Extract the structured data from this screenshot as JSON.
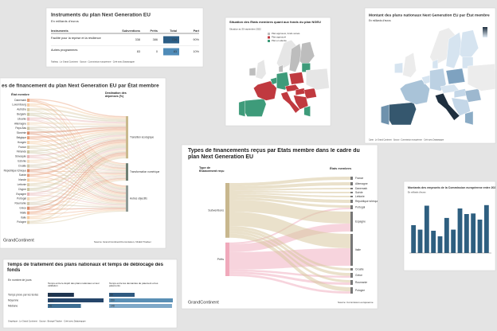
{
  "table": {
    "title": "Instruments du plan Next Generation EU",
    "subtitle": "En milliards d'euros",
    "columns": [
      "Instruments",
      "Subventions",
      "Prêts",
      "Total",
      "Part"
    ],
    "rows": [
      [
        "Facilité pour la reprise et la résilience",
        338,
        386,
        724,
        "90%"
      ],
      [
        "Autres programmes",
        83,
        0,
        83,
        "10%"
      ]
    ],
    "footer": "Tableau : Le Grand Continent · Source : Commission européenne · Créé avec Datawrapper"
  },
  "status_map": {
    "title": "Situation des États membres quant aux fonds du plan NGEU",
    "subtitle": "Situation au 30 septembre 2022",
    "legend": [
      "Plan approuvé, fonds versés",
      "Plan approuvé",
      "Plan en attente"
    ]
  },
  "amount_map": {
    "title": "Montant des plans nationaux Next Generation EU par État membre",
    "subtitle": "En milliards d'euros",
    "footer": "Carte : Le Grand Continent · Source : Commission européenne · Créé avec Datawrapper"
  },
  "destinations": {
    "title": "es de financement du plan Next Generation EU par État membre",
    "left_header": "État membre",
    "right_header": "Destination des dépenses (%)",
    "countries": [
      "Danemark",
      "Luxembourg",
      "Autriche",
      "Bulgarie",
      "Lituanie",
      "Allemagne",
      "Pays-Bas",
      "Slovénie",
      "Belgique",
      "Hongrie",
      "France",
      "Finlande",
      "Slovaquie",
      "Estonie",
      "Croatie",
      "République tchèque",
      "Suède",
      "Irlande",
      "Lettonie",
      "Chypre",
      "Espagne",
      "Portugal",
      "Roumanie",
      "Grèce",
      "Malte",
      "Italie",
      "Pologne"
    ],
    "targets": [
      "Transition écologique",
      "Transformation numérique",
      "Autres objectifs"
    ],
    "logo": "GrandContinent",
    "source": "Source: Grand Continent/Commission, NGEU Tracker"
  },
  "types": {
    "title": "Types de financements reçus par États membre dans le cadre du plan Next Generation EU",
    "left_header": "Type de financement reçu",
    "right_header": "États membres",
    "sources": [
      "Subventions",
      "Prêts"
    ],
    "countries": [
      "France",
      "Allemagne",
      "Danemark",
      "Suède",
      "Lettonie",
      "République tchèque",
      "Portugal",
      "Espagne",
      "Italie",
      "Croatie",
      "Grèce",
      "Roumanie",
      "Pologne"
    ],
    "logo": "GrandContinent",
    "source": "Source: Commission européenne"
  },
  "borrowing": {
    "title": "Montants des emprunts de la Commission européenne entre 2021 et 2022",
    "subtitle": "En milliards d'euros",
    "values": [
      5,
      4.2,
      8.5,
      4,
      3,
      6.3,
      4.2,
      8,
      7,
      7.1,
      6,
      8.6
    ],
    "ylim": [
      0,
      10
    ],
    "color": "#2e5f80"
  },
  "timing": {
    "title": "Temps de traitement des plans nationaux et temps de déblocage des fonds",
    "subtitle": "En nombre de jours",
    "columns": [
      "Temps entre le dépôt des plans nationaux et leur validation",
      "Temps entre les demandes de paiement et les paiements"
    ],
    "rows": [
      {
        "label": "Temps prévu par les textes",
        "values": [
          60,
          60
        ]
      },
      {
        "label": "Moyenne",
        "values": [
          128,
          150
        ]
      },
      {
        "label": "Médiane",
        "values": [
          76,
          148
        ]
      }
    ],
    "footer": "Graphique : Le Grand Continent · Source : Bruegel Tracker · Créé avec Datawrapper"
  }
}
